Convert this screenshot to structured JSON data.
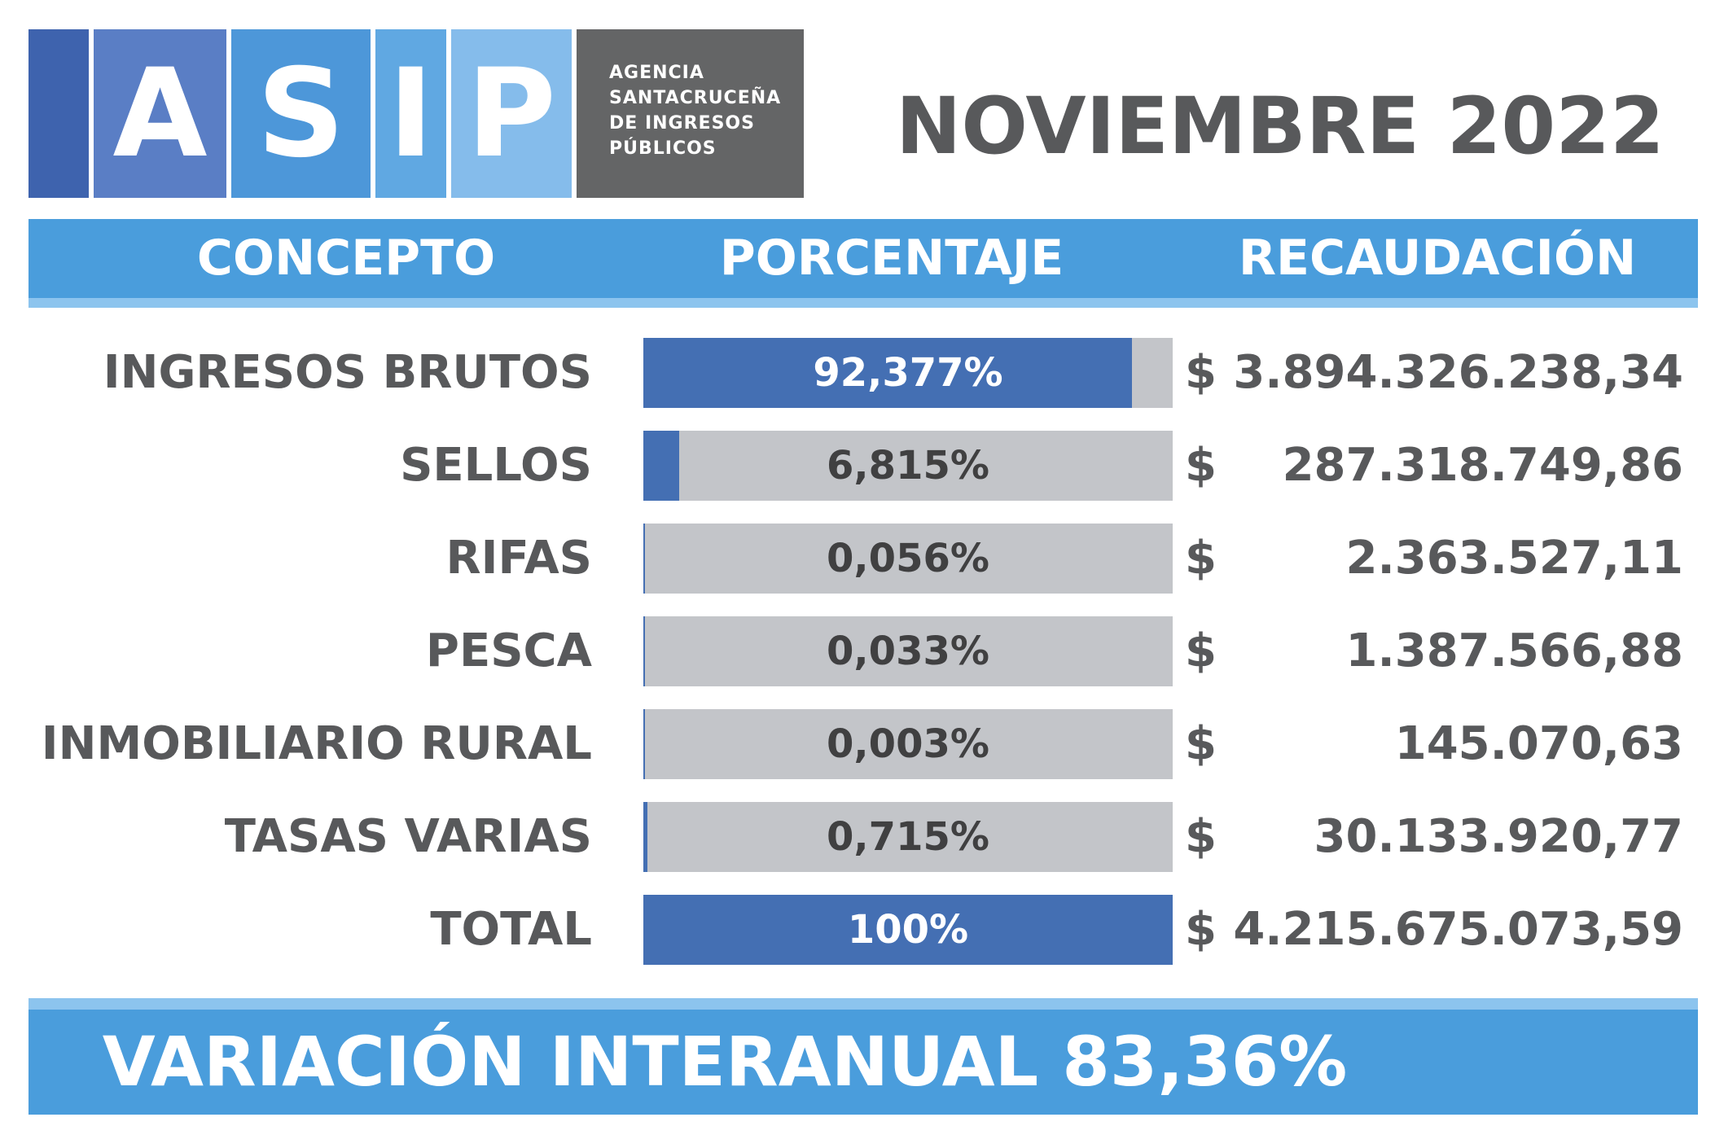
{
  "logo": {
    "letters": [
      "A",
      "S",
      "I",
      "P"
    ],
    "agency_lines": [
      "AGENCIA",
      "SANTACRUCEÑA",
      "DE INGRESOS",
      "PÚBLICOS"
    ]
  },
  "period_title": "NOVIEMBRE 2022",
  "headers": {
    "concept": "CONCEPTO",
    "percentage": "PORCENTAJE",
    "collection": "RECAUDACIÓN"
  },
  "currency_symbol": "$",
  "colors": {
    "header_blue": "#4a9ddc",
    "bar_fill": "#446fb3",
    "bar_track": "#c3c5c9",
    "text_gray": "#58595b"
  },
  "chart_data": {
    "type": "bar",
    "categories": [
      "INGRESOS BRUTOS",
      "SELLOS",
      "RIFAS",
      "PESCA",
      "INMOBILIARIO RURAL",
      "TASAS VARIAS",
      "TOTAL"
    ],
    "values": [
      92.377,
      6.815,
      0.056,
      0.033,
      0.003,
      0.715,
      100
    ],
    "value_labels": [
      "92,377%",
      "6,815%",
      "0,056%",
      "0,033%",
      "0,003%",
      "0,715%",
      "100%"
    ],
    "amounts": [
      "3.894.326.238,34",
      "287.318.749,86",
      "2.363.527,11",
      "1.387.566,88",
      "145.070,63",
      "30.133.920,77",
      "4.215.675.073,59"
    ],
    "ylim": [
      0,
      100
    ],
    "orientation": "horizontal",
    "grid": false
  },
  "footer": {
    "text": "VARIACIÓN INTERANUAL 83,36%"
  }
}
